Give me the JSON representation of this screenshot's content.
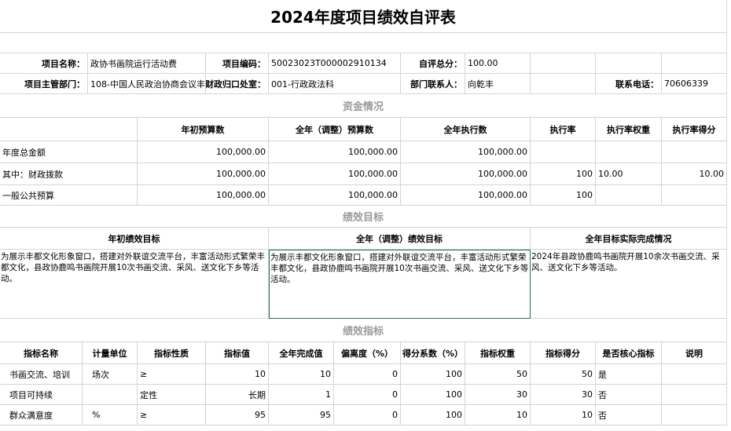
{
  "title": "2024年度项目绩效自评表",
  "project_info": {
    "name_label": "项目名称：",
    "name": "政协书画院运行活动费",
    "code_label": "项目编码：",
    "code": "50023023T000002910134",
    "score_label": "自评总分：",
    "score": "100.00",
    "dept_label": "项目主管部门：",
    "dept": "108-中国人民政治协商会议丰",
    "finance_label": "财政归口处室：",
    "finance": "001-行政政法科",
    "contact_label": "部门联系人：",
    "contact": "向乾丰",
    "phone_label": "联系电话：",
    "phone": "70606339"
  },
  "funds": {
    "title": "资金情况",
    "headers": [
      "年初预算数",
      "全年（调整）预算数",
      "全年执行数",
      "执行率",
      "执行率权重",
      "执行率得分"
    ],
    "rows": [
      {
        "label": "年度总金额",
        "initial": "100,000.00",
        "adjusted": "100,000.00",
        "executed": "100,000.00"
      },
      {
        "label": "其中：财政拨款",
        "initial": "100,000.00",
        "adjusted": "100,000.00",
        "executed": "100,000.00",
        "rate": "100",
        "weight": "10.00",
        "score": "10.00"
      },
      {
        "label": "一般公共预算",
        "initial": "100,000.00",
        "adjusted": "100,000.00",
        "executed": "100,000.00",
        "rate": "100"
      }
    ]
  },
  "goals": {
    "title": "绩效目标",
    "headers": [
      "年初绩效目标",
      "全年（调整）绩效目标",
      "全年目标实际完成情况"
    ],
    "texts": [
      "为展示丰都文化形象窗口，搭建对外联谊交流平台，丰富活动形式繁荣丰都文化，县政协鹿鸣书画院开展10次书画交流、采风、送文化下乡等活动。",
      "为展示丰都文化形象窗口，搭建对外联谊交流平台，丰富活动形式繁荣丰都文化，县政协鹿鸣书画院开展10次书画交流、采风、送文化下乡等活动。",
      "2024年县政协鹿鸣书画院开展10余次书画交流、采风、送文化下乡等活动。"
    ]
  },
  "indicators": {
    "title": "绩效指标",
    "headers": [
      "指标名称",
      "计量单位",
      "指标性质",
      "指标值",
      "全年完成值",
      "偏离度（%）",
      "得分系数（%）",
      "指标权重",
      "指标得分",
      "是否核心指标",
      "说明"
    ],
    "rows": [
      [
        "书画交流、培训",
        "场次",
        "≥",
        "10",
        "10",
        "0",
        "100",
        "50",
        "50",
        "是"
      ],
      [
        "项目可持续",
        null,
        "定性",
        "长期",
        "1",
        "0",
        "100",
        "30",
        "30",
        "否"
      ],
      [
        "群众满意度",
        "%",
        "≥",
        "95",
        "95",
        "0",
        "100",
        "10",
        "10",
        "否"
      ]
    ]
  }
}
